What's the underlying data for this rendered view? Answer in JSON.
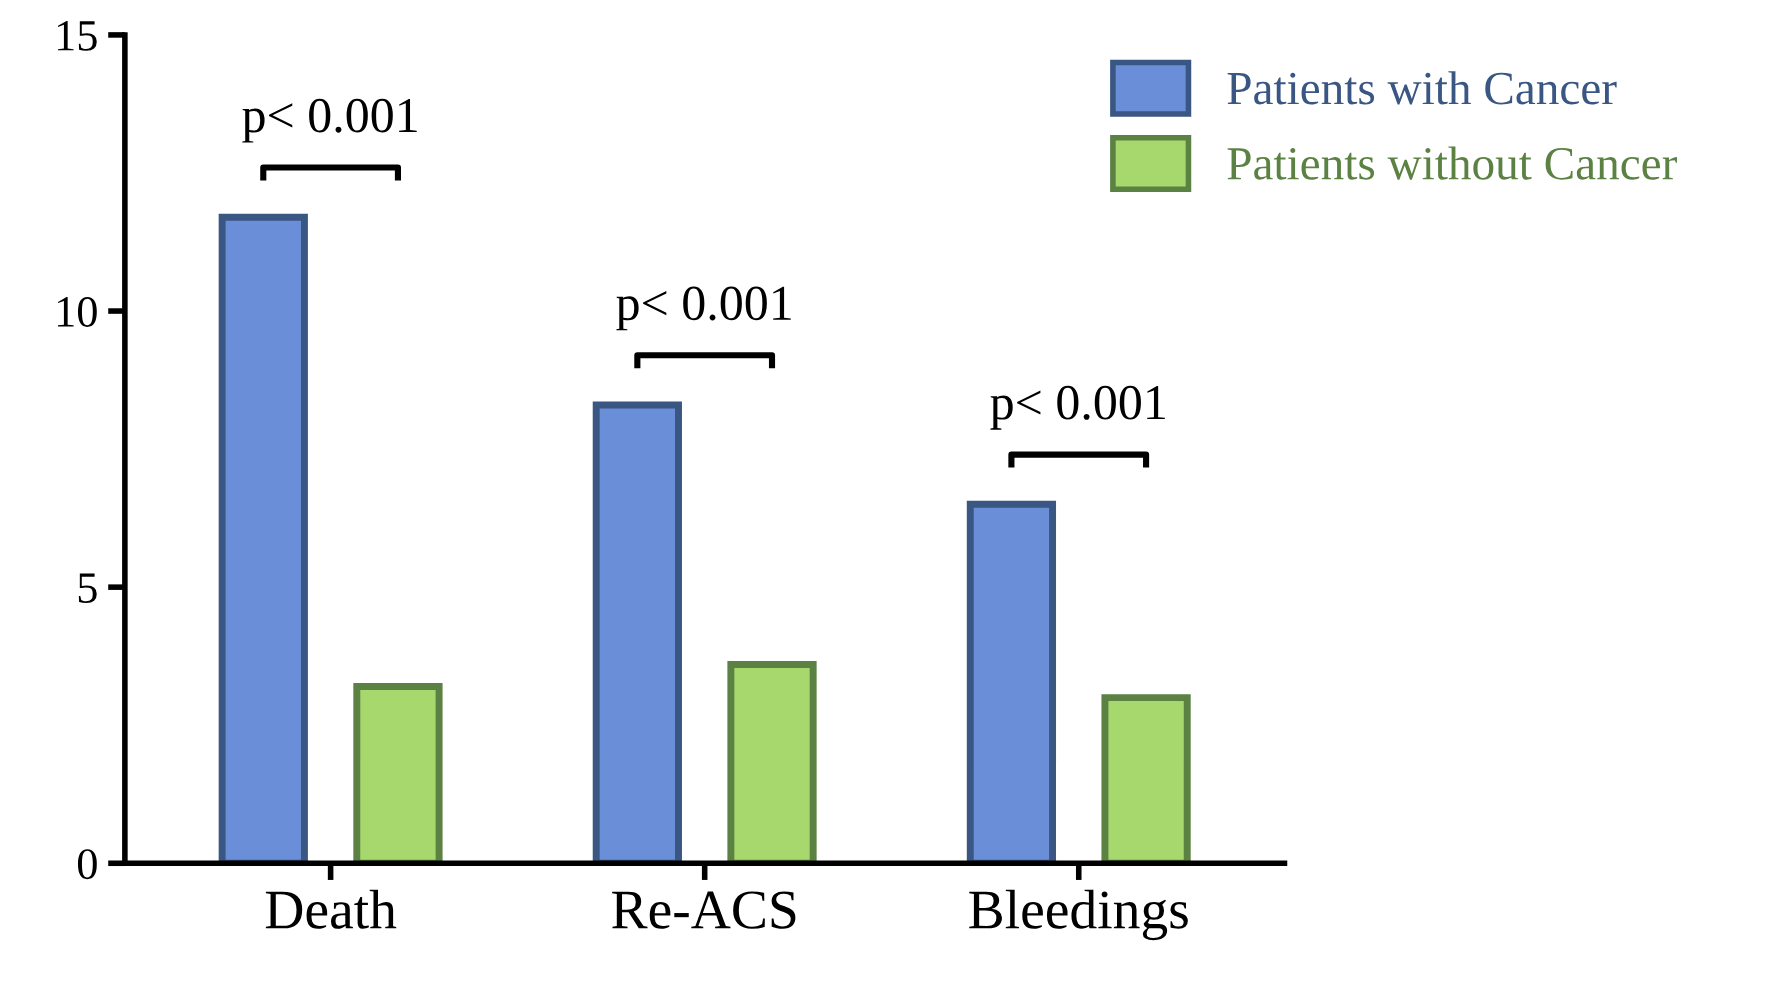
{
  "chart_data": {
    "type": "bar",
    "categories": [
      "Death",
      "Re-ACS",
      "Bleedings"
    ],
    "series": [
      {
        "name": "Patients with Cancer",
        "color": "#6a8fd8",
        "values": [
          11.7,
          8.3,
          6.5
        ]
      },
      {
        "name": "Patients without Cancer",
        "color": "#a6d86e",
        "values": [
          3.2,
          3.6,
          3.0
        ]
      }
    ],
    "ylim": [
      0,
      15
    ],
    "yticks": [
      0,
      5,
      10,
      15
    ],
    "annotations": [
      "p< 0.001",
      "p< 0.001",
      "p< 0.001"
    ],
    "legend": "top right",
    "grid": false
  }
}
